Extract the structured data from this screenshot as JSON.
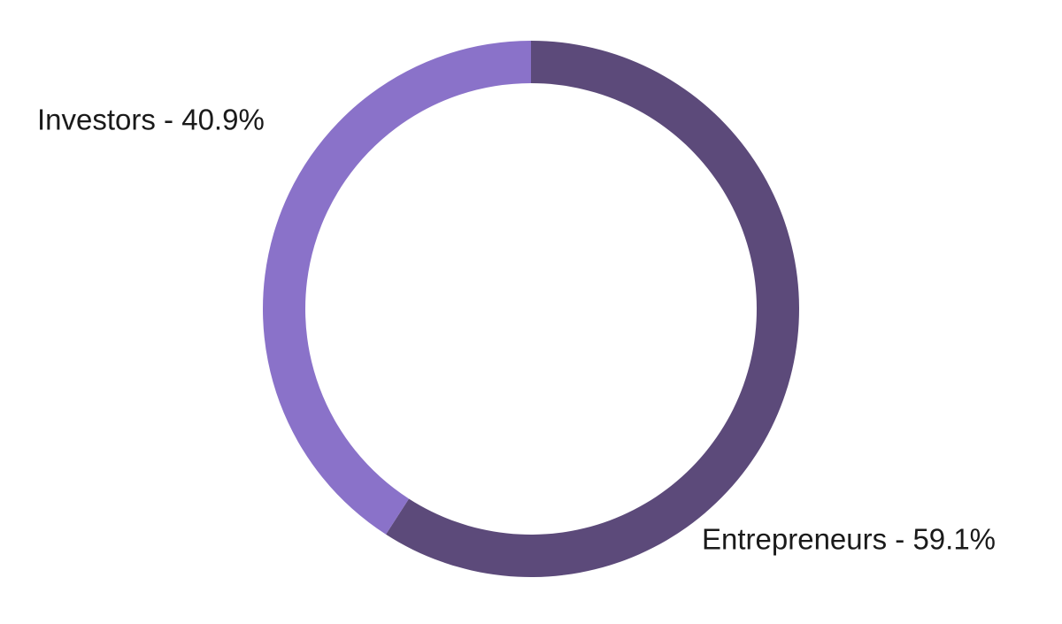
{
  "chart_data": {
    "type": "donut",
    "values": [
      59.1,
      40.9
    ],
    "value_labels": [
      "Entrepreneurs - 59.1%",
      "Investors - 40.9%"
    ],
    "colors": [
      "#5c4a7a",
      "#8a72c9"
    ]
  }
}
